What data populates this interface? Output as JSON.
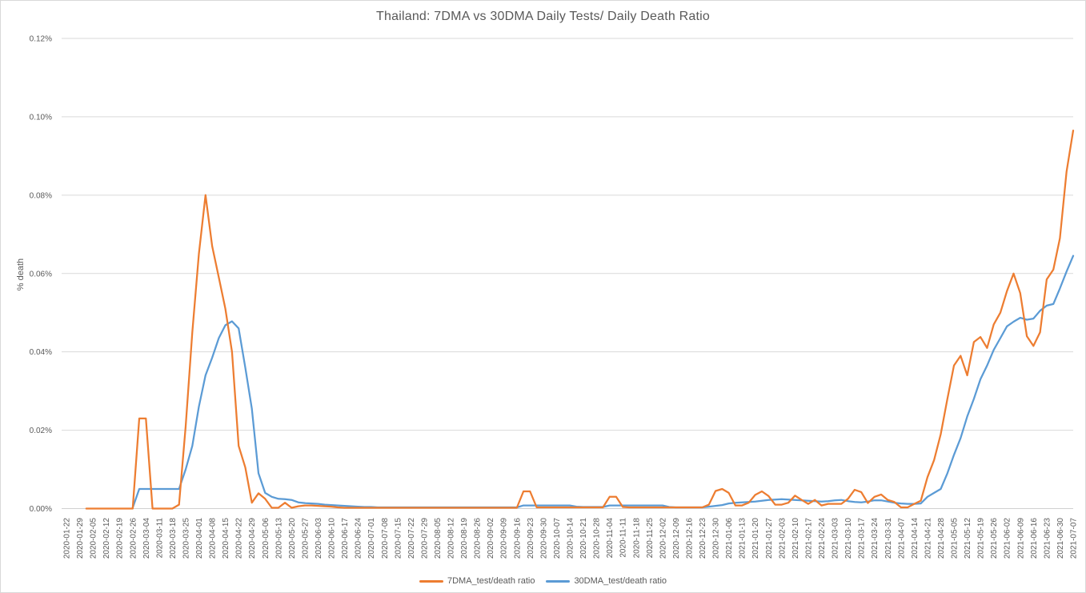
{
  "chart_data": {
    "type": "line",
    "title": "Thailand: 7DMA vs 30DMA Daily Tests/ Daily Death Ratio",
    "ylabel": "% death",
    "xlabel": "",
    "ylim": [
      0,
      0.12
    ],
    "grid": true,
    "legend_position": "bottom",
    "points_per_category": 2,
    "y_ticks": [
      {
        "value": 0.12,
        "label": "0.12%"
      },
      {
        "value": 0.1,
        "label": "0.10%"
      },
      {
        "value": 0.08,
        "label": "0.08%"
      },
      {
        "value": 0.06,
        "label": "0.06%"
      },
      {
        "value": 0.04,
        "label": "0.04%"
      },
      {
        "value": 0.02,
        "label": "0.02%"
      },
      {
        "value": 0.0,
        "label": "0.00%"
      }
    ],
    "categories": [
      "2020-01-22",
      "2020-01-29",
      "2020-02-05",
      "2020-02-12",
      "2020-02-19",
      "2020-02-26",
      "2020-03-04",
      "2020-03-11",
      "2020-03-18",
      "2020-03-25",
      "2020-04-01",
      "2020-04-08",
      "2020-04-15",
      "2020-04-22",
      "2020-04-29",
      "2020-05-06",
      "2020-05-13",
      "2020-05-20",
      "2020-05-27",
      "2020-06-03",
      "2020-06-10",
      "2020-06-17",
      "2020-06-24",
      "2020-07-01",
      "2020-07-08",
      "2020-07-15",
      "2020-07-22",
      "2020-07-29",
      "2020-08-05",
      "2020-08-12",
      "2020-08-19",
      "2020-08-26",
      "2020-09-02",
      "2020-09-09",
      "2020-09-16",
      "2020-09-23",
      "2020-09-30",
      "2020-10-07",
      "2020-10-14",
      "2020-10-21",
      "2020-10-28",
      "2020-11-04",
      "2020-11-11",
      "2020-11-18",
      "2020-11-25",
      "2020-12-02",
      "2020-12-09",
      "2020-12-16",
      "2020-12-23",
      "2020-12-30",
      "2021-01-06",
      "2021-01-13",
      "2021-01-20",
      "2021-01-27",
      "2021-02-03",
      "2021-02-10",
      "2021-02-17",
      "2021-02-24",
      "2021-03-03",
      "2021-03-10",
      "2021-03-17",
      "2021-03-24",
      "2021-03-31",
      "2021-04-07",
      "2021-04-14",
      "2021-04-21",
      "2021-04-28",
      "2021-05-05",
      "2021-05-12",
      "2021-05-19",
      "2021-05-26",
      "2021-06-02",
      "2021-06-09",
      "2021-06-16",
      "2021-06-23",
      "2021-06-30",
      "2021-07-07"
    ],
    "series": [
      {
        "name": "7DMA_test/death ratio",
        "color": "#ED7D31",
        "values": [
          null,
          null,
          null,
          0,
          0,
          0,
          0,
          0,
          0,
          0,
          0,
          0.023,
          0.023,
          0,
          0,
          0,
          0,
          0.001,
          0.021,
          0.045,
          0.065,
          0.08,
          0.067,
          0.059,
          0.051,
          0.04,
          0.016,
          0.0105,
          0.0015,
          0.0039,
          0.0025,
          0.0002,
          0.0002,
          0.0015,
          0.0002,
          0.0006,
          0.0008,
          0.0008,
          0.0007,
          0.0006,
          0.0005,
          0.0003,
          0.0002,
          0.0002,
          0.0002,
          0.0002,
          0.0002,
          0.0002,
          0.0002,
          0.0002,
          0.0002,
          0.0002,
          0.0002,
          0.0002,
          0.0002,
          0.0002,
          0.0002,
          0.0002,
          0.0002,
          0.0002,
          0.0002,
          0.0002,
          0.0002,
          0.0002,
          0.0002,
          0.0002,
          0.0002,
          0.0002,
          0.0002,
          0.0044,
          0.0044,
          0.0003,
          0.0003,
          0.0003,
          0.0003,
          0.0003,
          0.0003,
          0.0003,
          0.0003,
          0.0003,
          0.0003,
          0.0003,
          0.003,
          0.003,
          0.0004,
          0.0003,
          0.0003,
          0.0003,
          0.0003,
          0.0003,
          0.0003,
          0.0003,
          0.0003,
          0.0003,
          0.0003,
          0.0003,
          0.0003,
          0.001,
          0.0045,
          0.005,
          0.004,
          0.0008,
          0.0008,
          0.0015,
          0.0035,
          0.0044,
          0.0032,
          0.001,
          0.001,
          0.0015,
          0.0033,
          0.0022,
          0.0012,
          0.0022,
          0.0008,
          0.0012,
          0.0012,
          0.0012,
          0.0025,
          0.0048,
          0.0042,
          0.0014,
          0.003,
          0.0036,
          0.0022,
          0.0017,
          0.0003,
          0.0003,
          0.0012,
          0.002,
          0.008,
          0.0124,
          0.019,
          0.028,
          0.0365,
          0.039,
          0.034,
          0.0425,
          0.0438,
          0.041,
          0.047,
          0.05,
          0.0555,
          0.06,
          0.055,
          0.044,
          0.0415,
          0.045,
          0.0585,
          0.061,
          0.069,
          0.086,
          0.0965
        ]
      },
      {
        "name": "30DMA_test/death ratio",
        "color": "#5B9BD5",
        "values": [
          null,
          null,
          null,
          null,
          null,
          null,
          null,
          null,
          null,
          null,
          0.0002,
          0.005,
          0.005,
          0.005,
          0.005,
          0.005,
          0.005,
          0.005,
          0.01,
          0.016,
          0.026,
          0.034,
          0.0385,
          0.0435,
          0.0468,
          0.0478,
          0.046,
          0.036,
          0.0255,
          0.009,
          0.004,
          0.003,
          0.0025,
          0.0024,
          0.0022,
          0.0016,
          0.0014,
          0.0013,
          0.0012,
          0.001,
          0.0009,
          0.0008,
          0.0007,
          0.0006,
          0.0005,
          0.0004,
          0.0004,
          0.0003,
          0.0003,
          0.0003,
          0.0003,
          0.0003,
          0.0003,
          0.0003,
          0.0003,
          0.0003,
          0.0003,
          0.0003,
          0.0003,
          0.0003,
          0.0003,
          0.0003,
          0.0003,
          0.0003,
          0.0003,
          0.0003,
          0.0003,
          0.0003,
          0.0003,
          0.0008,
          0.0008,
          0.0008,
          0.0008,
          0.0008,
          0.0008,
          0.0008,
          0.0008,
          0.0005,
          0.0004,
          0.0004,
          0.0004,
          0.0004,
          0.0008,
          0.0008,
          0.0008,
          0.0008,
          0.0008,
          0.0008,
          0.0008,
          0.0008,
          0.0008,
          0.0004,
          0.0003,
          0.0003,
          0.0003,
          0.0003,
          0.0003,
          0.0005,
          0.0007,
          0.0009,
          0.0013,
          0.0015,
          0.0016,
          0.0017,
          0.0018,
          0.002,
          0.0022,
          0.0023,
          0.0024,
          0.0023,
          0.0022,
          0.0021,
          0.002,
          0.0019,
          0.0018,
          0.0019,
          0.0021,
          0.0022,
          0.0019,
          0.0017,
          0.0016,
          0.0018,
          0.0021,
          0.0021,
          0.0018,
          0.0015,
          0.0013,
          0.0012,
          0.0012,
          0.0013,
          0.003,
          0.004,
          0.005,
          0.009,
          0.0137,
          0.018,
          0.0235,
          0.028,
          0.033,
          0.0365,
          0.0405,
          0.0435,
          0.0465,
          0.0477,
          0.0487,
          0.0482,
          0.0485,
          0.0505,
          0.0518,
          0.0522,
          0.0562,
          0.0605,
          0.0645
        ]
      }
    ],
    "colors": {
      "gridline": "#D9D9D9",
      "axis_line": "#D0D0D0",
      "text": "#595959",
      "background": "#FFFFFF"
    }
  }
}
